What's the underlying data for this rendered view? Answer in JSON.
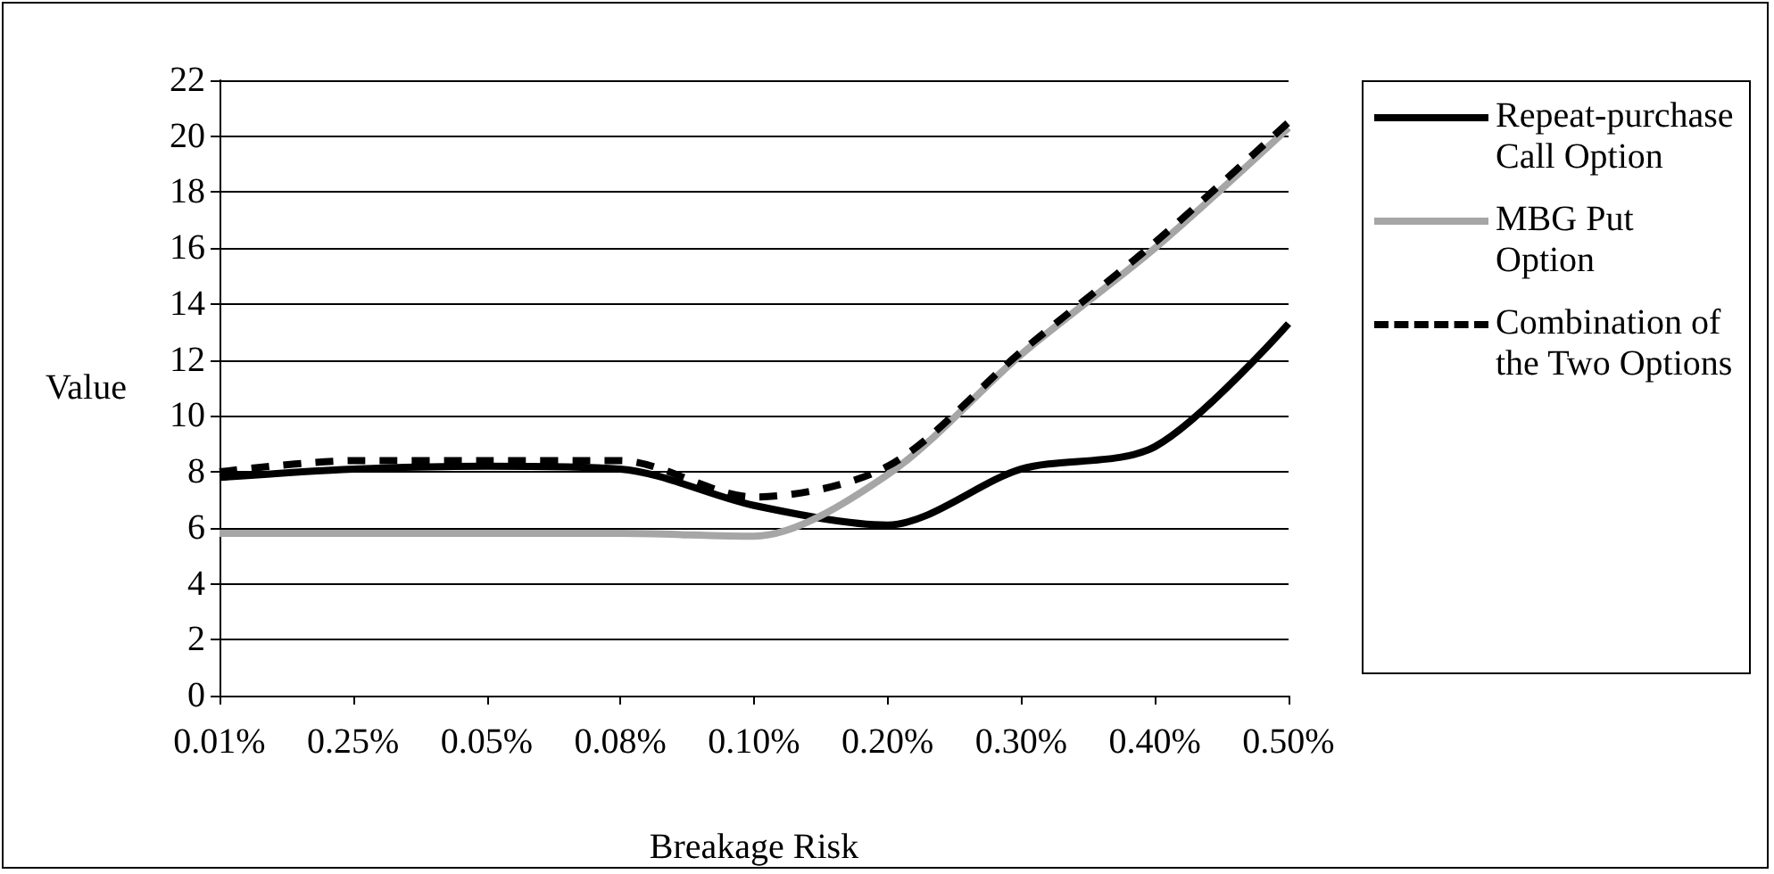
{
  "chart_data": {
    "type": "line",
    "xlabel": "Breakage Risk",
    "ylabel": "Value",
    "categories": [
      "0.01%",
      "0.25%",
      "0.05%",
      "0.08%",
      "0.10%",
      "0.20%",
      "0.30%",
      "0.40%",
      "0.50%"
    ],
    "series": [
      {
        "name": "Repeat-purchase Call Option",
        "color": "#000000",
        "line_style": "solid",
        "values": [
          7.8,
          8.1,
          8.2,
          8.1,
          6.8,
          6.1,
          8.1,
          8.9,
          13.3
        ]
      },
      {
        "name": "MBG Put Option",
        "color": "#a6a6a6",
        "line_style": "solid",
        "values": [
          5.8,
          5.8,
          5.8,
          5.8,
          5.7,
          7.9,
          12.2,
          16.0,
          20.3
        ]
      },
      {
        "name": "Combination of the Two Options",
        "color": "#000000",
        "line_style": "dashed",
        "values": [
          8.0,
          8.4,
          8.4,
          8.4,
          7.1,
          8.2,
          12.3,
          16.2,
          20.5
        ]
      }
    ],
    "ylim": [
      0,
      22
    ],
    "yticks": [
      0,
      2,
      4,
      6,
      8,
      10,
      12,
      14,
      16,
      18,
      20,
      22
    ],
    "grid": "y",
    "legend": "right",
    "marker": "none"
  }
}
